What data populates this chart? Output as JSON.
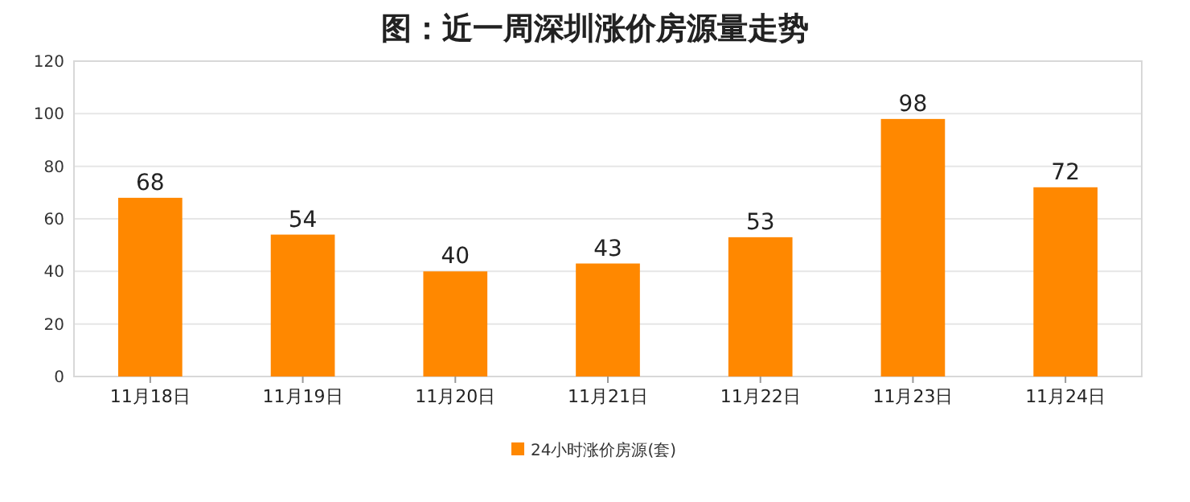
{
  "chart_data": {
    "type": "bar",
    "title": "图：近一周深圳涨价房源量走势",
    "categories": [
      "11月18日",
      "11月19日",
      "11月20日",
      "11月21日",
      "11月22日",
      "11月23日",
      "11月24日"
    ],
    "series": [
      {
        "name": "24小时涨价房源(套)",
        "color": "#ff8800",
        "values": [
          68,
          54,
          40,
          43,
          53,
          98,
          72
        ]
      }
    ],
    "ylim": [
      0,
      120
    ],
    "yticks": [
      0,
      20,
      40,
      60,
      80,
      100,
      120
    ],
    "grid": "y",
    "legend": "bottom",
    "data_labels": true
  }
}
